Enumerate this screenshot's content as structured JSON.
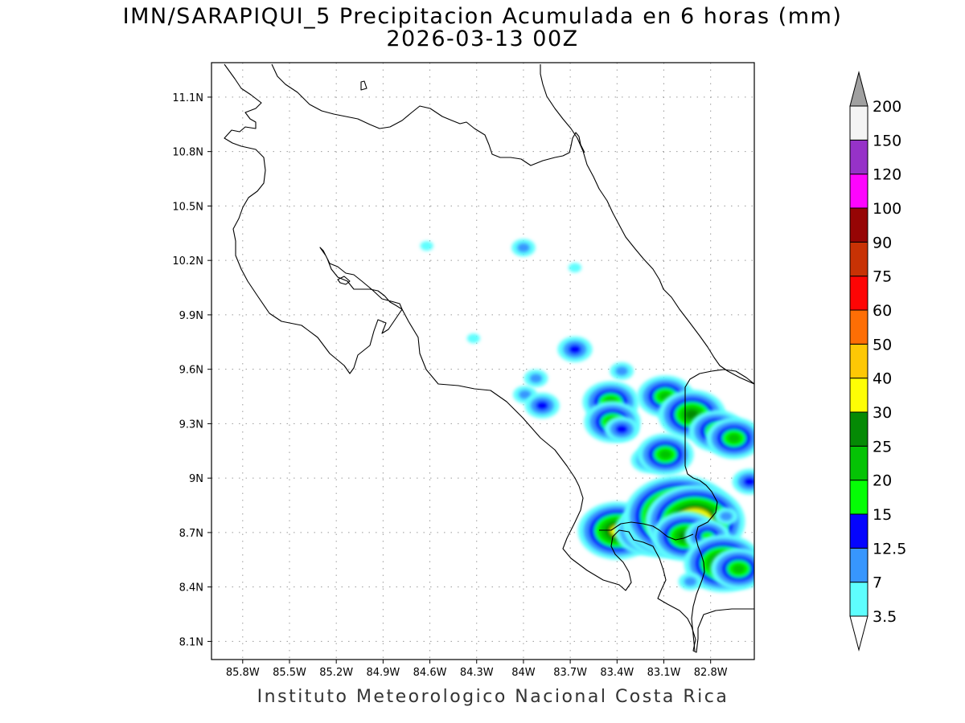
{
  "title": {
    "line1": "IMN/SARAPIQUI_5 Precipitacion Acumulada en 6 horas (mm)",
    "line2": "2026-03-13 00Z"
  },
  "footer": "Instituto Meteorologico Nacional Costa Rica",
  "axes": {
    "x_ticks": [
      "85.8W",
      "85.5W",
      "85.2W",
      "84.9W",
      "84.6W",
      "84.3W",
      "84W",
      "83.7W",
      "83.4W",
      "83.1W",
      "82.8W"
    ],
    "y_ticks": [
      "11.1N",
      "10.8N",
      "10.5N",
      "10.2N",
      "9.9N",
      "9.6N",
      "9.3N",
      "9N",
      "8.7N",
      "8.4N",
      "8.1N"
    ],
    "lon_range": [
      -86.0,
      -82.52
    ],
    "lat_range": [
      8.0,
      11.29
    ],
    "grid": true
  },
  "colorbar": {
    "units": "mm",
    "labels": [
      "3.5",
      "7",
      "12.5",
      "15",
      "20",
      "25",
      "30",
      "40",
      "50",
      "60",
      "75",
      "90",
      "100",
      "120",
      "150",
      "200"
    ],
    "colors": [
      "#5efefe",
      "#3796fe",
      "#0505fe",
      "#05fe05",
      "#05c305",
      "#058a05",
      "#fefe05",
      "#fec805",
      "#fe6e05",
      "#fe0505",
      "#c83205",
      "#960505",
      "#fe05fe",
      "#9632c8",
      "#f4f4f4",
      "#a0a0a0"
    ]
  },
  "precip_cells": [
    {
      "lon": -84.0,
      "lat": 10.27,
      "level": 2
    },
    {
      "lon": -83.67,
      "lat": 10.16,
      "level": 1
    },
    {
      "lon": -84.62,
      "lat": 10.28,
      "level": 1
    },
    {
      "lon": -84.32,
      "lat": 9.77,
      "level": 1
    },
    {
      "lon": -83.67,
      "lat": 9.71,
      "level": 3
    },
    {
      "lon": -83.37,
      "lat": 9.59,
      "level": 2
    },
    {
      "lon": -83.92,
      "lat": 9.55,
      "level": 2
    },
    {
      "lon": -83.99,
      "lat": 9.46,
      "level": 2
    },
    {
      "lon": -83.88,
      "lat": 9.4,
      "level": 3
    },
    {
      "lon": -83.44,
      "lat": 9.42,
      "level": 5
    },
    {
      "lon": -83.43,
      "lat": 9.31,
      "level": 5
    },
    {
      "lon": -83.37,
      "lat": 9.27,
      "level": 3
    },
    {
      "lon": -83.09,
      "lat": 9.45,
      "level": 5
    },
    {
      "lon": -82.92,
      "lat": 9.35,
      "level": 6
    },
    {
      "lon": -82.76,
      "lat": 9.26,
      "level": 5
    },
    {
      "lon": -82.65,
      "lat": 9.22,
      "level": 5
    },
    {
      "lon": -83.2,
      "lat": 9.1,
      "level": 3
    },
    {
      "lon": -83.09,
      "lat": 9.13,
      "level": 5
    },
    {
      "lon": -82.55,
      "lat": 8.98,
      "level": 3
    },
    {
      "lon": -83.4,
      "lat": 8.71,
      "level": 7
    },
    {
      "lon": -83.2,
      "lat": 8.71,
      "level": 6
    },
    {
      "lon": -83.08,
      "lat": 8.74,
      "level": 8
    },
    {
      "lon": -83.0,
      "lat": 8.79,
      "level": 10
    },
    {
      "lon": -82.9,
      "lat": 8.76,
      "level": 9
    },
    {
      "lon": -82.96,
      "lat": 8.68,
      "level": 6
    },
    {
      "lon": -82.82,
      "lat": 8.68,
      "level": 4
    },
    {
      "lon": -82.83,
      "lat": 8.47,
      "level": 3
    },
    {
      "lon": -82.72,
      "lat": 8.53,
      "level": 7
    },
    {
      "lon": -82.62,
      "lat": 8.5,
      "level": 5
    },
    {
      "lon": -82.93,
      "lat": 8.43,
      "level": 2
    },
    {
      "lon": -82.7,
      "lat": 8.79,
      "level": 2
    }
  ]
}
